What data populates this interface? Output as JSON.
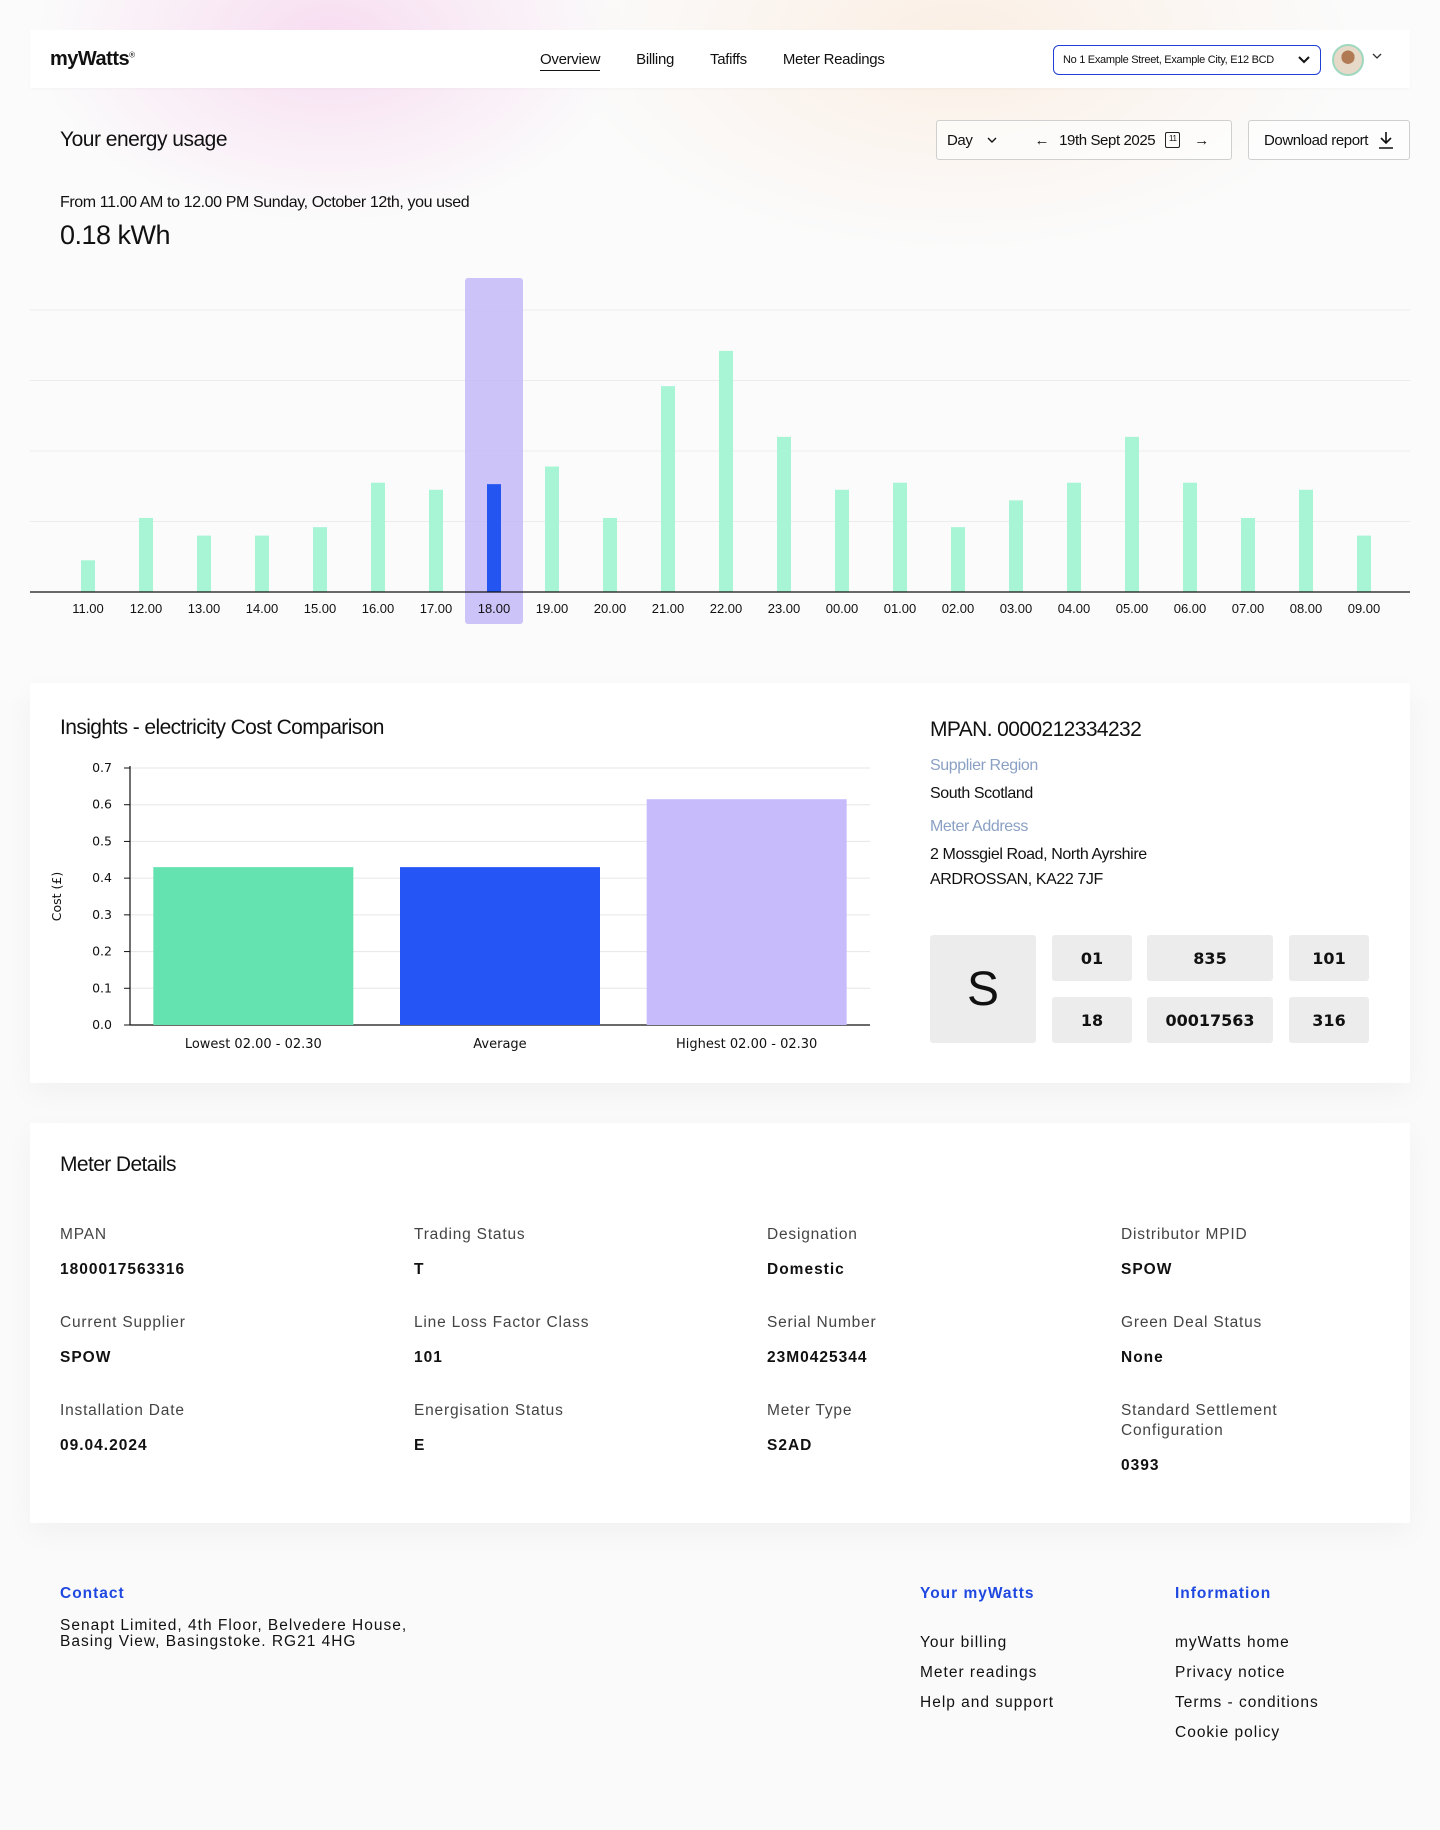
{
  "brand": {
    "name": "myWatts",
    "mark": "®"
  },
  "nav": {
    "tabs": [
      "Overview",
      "Billing",
      "Tafiffs",
      "Meter Readings"
    ],
    "active_tab": "Overview",
    "address": "No 1 Example Street, Example City, E12 BCD"
  },
  "usage": {
    "title": "Your energy usage",
    "period_select": "Day",
    "date": "19th Sept 2025",
    "calendar_day": "11",
    "download_label": "Download report",
    "summary_line": "From 11.00 AM to 12.00 PM Sunday, October 12th, you used",
    "summary_value": "0.18 kWh"
  },
  "chart_data": [
    {
      "type": "bar",
      "categories": [
        "11.00",
        "12.00",
        "13.00",
        "14.00",
        "15.00",
        "16.00",
        "17.00",
        "18.00",
        "19.00",
        "20.00",
        "21.00",
        "22.00",
        "23.00",
        "00.00",
        "01.00",
        "02.00",
        "03.00",
        "04.00",
        "05.00",
        "06.00",
        "07.00",
        "08.00",
        "09.00"
      ],
      "values": [
        0.45,
        1.05,
        0.8,
        0.8,
        0.92,
        1.55,
        1.45,
        1.53,
        1.78,
        1.05,
        2.92,
        3.42,
        2.2,
        1.45,
        1.55,
        0.92,
        1.3,
        1.55,
        2.2,
        1.55,
        1.05,
        1.45,
        0.8
      ],
      "highlighted_category": "18.00",
      "ylim": [
        0,
        4
      ],
      "grid": true,
      "colors": {
        "bar": "#a8f5d6",
        "selected_bar": "#2555f0",
        "highlight_band": "#c3b8f8"
      }
    },
    {
      "type": "bar",
      "title": "Insights - electricity Cost Comparison",
      "categories": [
        "Lowest 02.00 - 02.30",
        "Average",
        "Highest 02.00 - 02.30"
      ],
      "values": [
        0.43,
        0.43,
        0.615
      ],
      "ylabel": "Cost (£)",
      "ylim": [
        0,
        0.7
      ],
      "yticks": [
        "0.0",
        "0.1",
        "0.2",
        "0.3",
        "0.4",
        "0.5",
        "0.6",
        "0.7"
      ],
      "grid": true,
      "colors": [
        "#64e3b0",
        "#2555f5",
        "#c8bbfb"
      ]
    }
  ],
  "mpan": {
    "title": "MPAN. 0000212334232",
    "supplier_region_label": "Supplier Region",
    "supplier_region": "South Scotland",
    "meter_address_label": "Meter Address",
    "meter_address_line1": "2 Mossgiel Road, North Ayrshire",
    "meter_address_line2": "ARDROSSAN, KA22 7JF",
    "supply_letter": "S",
    "top_row": [
      "01",
      "835",
      "101"
    ],
    "bottom_row": [
      "18",
      "00017563",
      "316"
    ]
  },
  "meter_details": {
    "title": "Meter Details",
    "items": [
      {
        "label": "MPAN",
        "value": "1800017563316"
      },
      {
        "label": "Trading Status",
        "value": "T"
      },
      {
        "label": "Designation",
        "value": "Domestic"
      },
      {
        "label": "Distributor MPID",
        "value": "SPOW"
      },
      {
        "label": "Current Supplier",
        "value": "SPOW"
      },
      {
        "label": "Line Loss Factor Class",
        "value": "101"
      },
      {
        "label": "Serial Number",
        "value": "23M0425344"
      },
      {
        "label": "Green Deal Status",
        "value": "None"
      },
      {
        "label": "Installation Date",
        "value": "09.04.2024"
      },
      {
        "label": "Energisation Status",
        "value": "E"
      },
      {
        "label": "Meter Type",
        "value": "S2AD"
      },
      {
        "label": "Standard Settlement Configuration",
        "value": "0393"
      }
    ]
  },
  "footer": {
    "contact_heading": "Contact",
    "contact_line1": "Senapt Limited, 4th Floor, Belvedere House,",
    "contact_line2": "Basing View, Basingstoke. RG21 4HG",
    "mywatts_heading": "Your myWatts",
    "mywatts_links": [
      "Your billing",
      "Meter readings",
      "Help and support"
    ],
    "info_heading": "Information",
    "info_links": [
      "myWatts home",
      "Privacy notice",
      "Terms - conditions",
      "Cookie policy"
    ]
  }
}
